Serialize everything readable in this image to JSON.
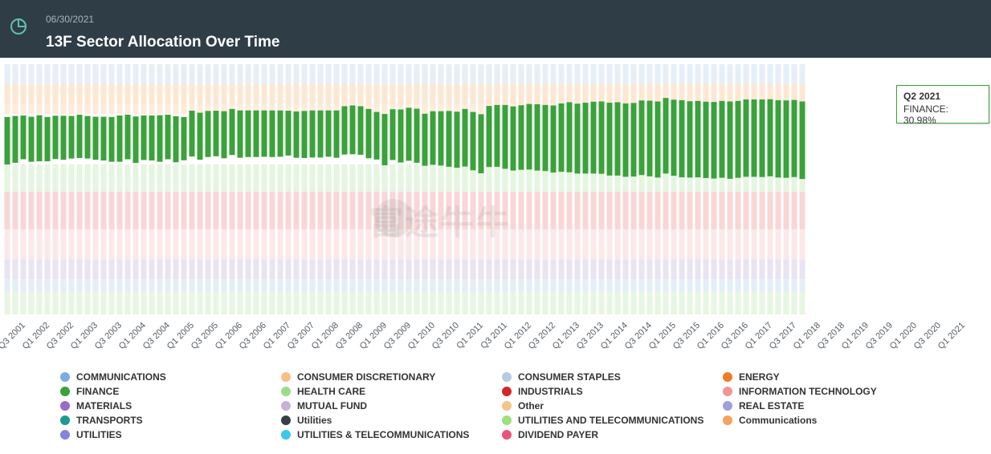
{
  "header": {
    "date": "06/30/2021",
    "title": "13F Sector Allocation Over Time"
  },
  "watermark": {
    "text": "富途牛牛"
  },
  "tooltip": {
    "period": "Q2 2021",
    "text": "FINANCE: 30.98%"
  },
  "chart_data": {
    "type": "bar",
    "stacked": true,
    "title": "13F Sector Allocation Over Time",
    "highlight_series": "FINANCE",
    "x_tick_labels": [
      "Q3 2001",
      "Q1 2002",
      "Q3 2002",
      "Q1 2003",
      "Q3 2003",
      "Q1 2004",
      "Q3 2004",
      "Q1 2005",
      "Q3 2005",
      "Q1 2006",
      "Q3 2006",
      "Q1 2007",
      "Q3 2007",
      "Q1 2008",
      "Q3 2008",
      "Q1 2009",
      "Q3 2009",
      "Q1 2010",
      "Q3 2010",
      "Q1 2011",
      "Q3 2011",
      "Q1 2012",
      "Q3 2012",
      "Q1 2013",
      "Q3 2013",
      "Q1 2014",
      "Q3 2014",
      "Q1 2015",
      "Q3 2015",
      "Q1 2016",
      "Q3 2016",
      "Q1 2017",
      "Q3 2017",
      "Q1 2018",
      "Q3 2018",
      "Q1 2019",
      "Q3 2019",
      "Q1 2020",
      "Q3 2020",
      "Q1 2021"
    ],
    "finance_top_pct": [
      78.9,
      79.3,
      79.5,
      79.0,
      79.6,
      78.9,
      79.4,
      79.4,
      79.3,
      79.8,
      79.3,
      79.0,
      79.0,
      78.9,
      79.5,
      79.8,
      79.1,
      79.5,
      79.5,
      79.6,
      79.8,
      79.2,
      78.9,
      81.4,
      80.6,
      81.3,
      81.4,
      81.2,
      82.1,
      81.5,
      81.5,
      81.5,
      81.5,
      81.5,
      81.5,
      81.4,
      81.1,
      81.3,
      81.5,
      81.5,
      81.5,
      81.5,
      83.2,
      83.5,
      83.2,
      82.1,
      80.9,
      80.1,
      82.0,
      81.9,
      82.6,
      82.2,
      80.2,
      81.2,
      81.2,
      81.3,
      81.0,
      82.1,
      80.9,
      80.0,
      83.3,
      83.7,
      83.7,
      83.1,
      83.6,
      84.1,
      84.0,
      83.7,
      83.5,
      84.3,
      84.8,
      84.2,
      84.6,
      85.0,
      85.1,
      84.6,
      84.8,
      84.3,
      84.5,
      85.5,
      85.4,
      85.1,
      86.5,
      85.8,
      85.6,
      85.2,
      85.3,
      85.0,
      84.9,
      85.3,
      85.1,
      85.3,
      85.9,
      85.9,
      85.9,
      86.0,
      85.6,
      85.5,
      85.7,
      85.1
    ],
    "finance_values_pct": [
      19.0,
      18.7,
      17.5,
      18.0,
      18.4,
      17.7,
      17.3,
      17.6,
      17.0,
      17.3,
      17.0,
      17.2,
      17.5,
      17.9,
      18.5,
      17.8,
      18.6,
      17.8,
      18.0,
      18.6,
      17.8,
      18.4,
      17.3,
      18.3,
      18.8,
      18.4,
      18.2,
      18.8,
      18.4,
      18.9,
      18.6,
      18.6,
      18.5,
      18.6,
      18.5,
      17.9,
      18.5,
      18.8,
      18.8,
      18.8,
      18.5,
      18.9,
      19.3,
      19.5,
      19.4,
      19.7,
      19.0,
      20.5,
      20.3,
      21.2,
      21.2,
      21.6,
      20.8,
      21.4,
      21.7,
      22.3,
      22.4,
      23.0,
      23.3,
      23.6,
      24.4,
      24.7,
      25.5,
      25.6,
      25.8,
      26.2,
      26.5,
      26.4,
      26.8,
      27.3,
      28.0,
      27.9,
      28.3,
      28.7,
      28.9,
      29.1,
      29.3,
      29.3,
      29.4,
      29.8,
      30.2,
      30.4,
      30.2,
      30.4,
      30.8,
      30.5,
      30.5,
      30.5,
      30.6,
      30.7,
      30.9,
      30.7,
      30.9,
      30.9,
      31.0,
      30.8,
      30.9,
      30.9,
      30.8,
      30.98
    ],
    "background_sectors": [
      "CONSUMER DISCRETIONARY",
      "CONSUMER STAPLES",
      "HEALTH CARE",
      "INDUSTRIALS",
      "MUTUAL FUND",
      "UTILITIES AND TELECOMMUNICATIONS"
    ],
    "ylim": [
      0,
      100
    ],
    "series": [
      {
        "name": "COMMUNICATIONS",
        "color": "#7aaee3"
      },
      {
        "name": "CONSUMER DISCRETIONARY",
        "color": "#f7be86"
      },
      {
        "name": "CONSUMER STAPLES",
        "color": "#b5cbe3"
      },
      {
        "name": "ENERGY",
        "color": "#f17b22"
      },
      {
        "name": "FINANCE",
        "color": "#3aa23a"
      },
      {
        "name": "HEALTH CARE",
        "color": "#9bdc88"
      },
      {
        "name": "INDUSTRIALS",
        "color": "#d42727"
      },
      {
        "name": "INFORMATION TECHNOLOGY",
        "color": "#f29596"
      },
      {
        "name": "MATERIALS",
        "color": "#9a6bc2"
      },
      {
        "name": "MUTUAL FUND",
        "color": "#c6b2d6"
      },
      {
        "name": "Other",
        "color": "#f5c38c"
      },
      {
        "name": "REAL ESTATE",
        "color": "#9f9fde"
      },
      {
        "name": "TRANSPORTS",
        "color": "#1d9a8f"
      },
      {
        "name": "Utilities",
        "color": "#3b3f44"
      },
      {
        "name": "UTILITIES AND TELECOMMUNICATIONS",
        "color": "#9ee07d"
      },
      {
        "name": "Communications",
        "color": "#f5a25c"
      },
      {
        "name": "UTILITIES",
        "color": "#8585de"
      },
      {
        "name": "UTILITIES & TELECOMMUNICATIONS",
        "color": "#3ec6ec"
      },
      {
        "name": "DIVIDEND PAYER",
        "color": "#e9547a"
      }
    ]
  }
}
